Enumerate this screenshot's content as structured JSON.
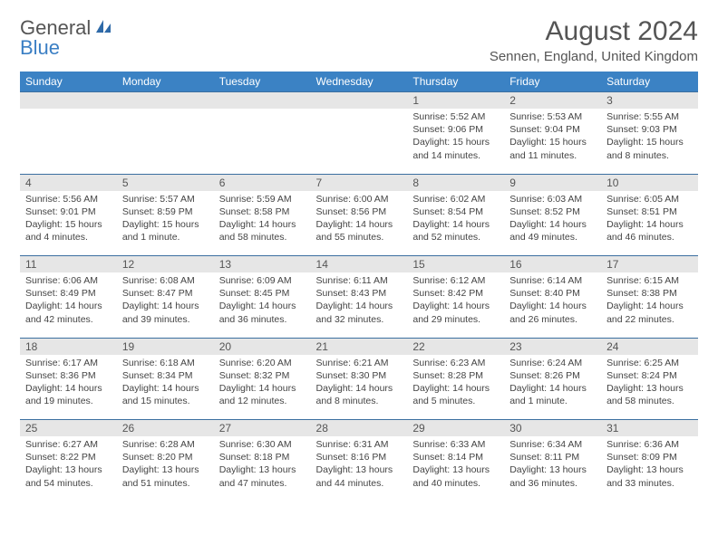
{
  "logo": {
    "text1": "General",
    "text2": "Blue"
  },
  "title": "August 2024",
  "location": "Sennen, England, United Kingdom",
  "colors": {
    "header_bg": "#3b82c4",
    "header_text": "#ffffff",
    "daynum_bg": "#e6e6e6",
    "border": "#3b6fa0",
    "text": "#444444",
    "title_text": "#555555",
    "logo_blue": "#3b7fc4"
  },
  "weekdays": [
    "Sunday",
    "Monday",
    "Tuesday",
    "Wednesday",
    "Thursday",
    "Friday",
    "Saturday"
  ],
  "weeks": [
    [
      {
        "n": "",
        "sr": "",
        "ss": "",
        "dl": ""
      },
      {
        "n": "",
        "sr": "",
        "ss": "",
        "dl": ""
      },
      {
        "n": "",
        "sr": "",
        "ss": "",
        "dl": ""
      },
      {
        "n": "",
        "sr": "",
        "ss": "",
        "dl": ""
      },
      {
        "n": "1",
        "sr": "Sunrise: 5:52 AM",
        "ss": "Sunset: 9:06 PM",
        "dl": "Daylight: 15 hours and 14 minutes."
      },
      {
        "n": "2",
        "sr": "Sunrise: 5:53 AM",
        "ss": "Sunset: 9:04 PM",
        "dl": "Daylight: 15 hours and 11 minutes."
      },
      {
        "n": "3",
        "sr": "Sunrise: 5:55 AM",
        "ss": "Sunset: 9:03 PM",
        "dl": "Daylight: 15 hours and 8 minutes."
      }
    ],
    [
      {
        "n": "4",
        "sr": "Sunrise: 5:56 AM",
        "ss": "Sunset: 9:01 PM",
        "dl": "Daylight: 15 hours and 4 minutes."
      },
      {
        "n": "5",
        "sr": "Sunrise: 5:57 AM",
        "ss": "Sunset: 8:59 PM",
        "dl": "Daylight: 15 hours and 1 minute."
      },
      {
        "n": "6",
        "sr": "Sunrise: 5:59 AM",
        "ss": "Sunset: 8:58 PM",
        "dl": "Daylight: 14 hours and 58 minutes."
      },
      {
        "n": "7",
        "sr": "Sunrise: 6:00 AM",
        "ss": "Sunset: 8:56 PM",
        "dl": "Daylight: 14 hours and 55 minutes."
      },
      {
        "n": "8",
        "sr": "Sunrise: 6:02 AM",
        "ss": "Sunset: 8:54 PM",
        "dl": "Daylight: 14 hours and 52 minutes."
      },
      {
        "n": "9",
        "sr": "Sunrise: 6:03 AM",
        "ss": "Sunset: 8:52 PM",
        "dl": "Daylight: 14 hours and 49 minutes."
      },
      {
        "n": "10",
        "sr": "Sunrise: 6:05 AM",
        "ss": "Sunset: 8:51 PM",
        "dl": "Daylight: 14 hours and 46 minutes."
      }
    ],
    [
      {
        "n": "11",
        "sr": "Sunrise: 6:06 AM",
        "ss": "Sunset: 8:49 PM",
        "dl": "Daylight: 14 hours and 42 minutes."
      },
      {
        "n": "12",
        "sr": "Sunrise: 6:08 AM",
        "ss": "Sunset: 8:47 PM",
        "dl": "Daylight: 14 hours and 39 minutes."
      },
      {
        "n": "13",
        "sr": "Sunrise: 6:09 AM",
        "ss": "Sunset: 8:45 PM",
        "dl": "Daylight: 14 hours and 36 minutes."
      },
      {
        "n": "14",
        "sr": "Sunrise: 6:11 AM",
        "ss": "Sunset: 8:43 PM",
        "dl": "Daylight: 14 hours and 32 minutes."
      },
      {
        "n": "15",
        "sr": "Sunrise: 6:12 AM",
        "ss": "Sunset: 8:42 PM",
        "dl": "Daylight: 14 hours and 29 minutes."
      },
      {
        "n": "16",
        "sr": "Sunrise: 6:14 AM",
        "ss": "Sunset: 8:40 PM",
        "dl": "Daylight: 14 hours and 26 minutes."
      },
      {
        "n": "17",
        "sr": "Sunrise: 6:15 AM",
        "ss": "Sunset: 8:38 PM",
        "dl": "Daylight: 14 hours and 22 minutes."
      }
    ],
    [
      {
        "n": "18",
        "sr": "Sunrise: 6:17 AM",
        "ss": "Sunset: 8:36 PM",
        "dl": "Daylight: 14 hours and 19 minutes."
      },
      {
        "n": "19",
        "sr": "Sunrise: 6:18 AM",
        "ss": "Sunset: 8:34 PM",
        "dl": "Daylight: 14 hours and 15 minutes."
      },
      {
        "n": "20",
        "sr": "Sunrise: 6:20 AM",
        "ss": "Sunset: 8:32 PM",
        "dl": "Daylight: 14 hours and 12 minutes."
      },
      {
        "n": "21",
        "sr": "Sunrise: 6:21 AM",
        "ss": "Sunset: 8:30 PM",
        "dl": "Daylight: 14 hours and 8 minutes."
      },
      {
        "n": "22",
        "sr": "Sunrise: 6:23 AM",
        "ss": "Sunset: 8:28 PM",
        "dl": "Daylight: 14 hours and 5 minutes."
      },
      {
        "n": "23",
        "sr": "Sunrise: 6:24 AM",
        "ss": "Sunset: 8:26 PM",
        "dl": "Daylight: 14 hours and 1 minute."
      },
      {
        "n": "24",
        "sr": "Sunrise: 6:25 AM",
        "ss": "Sunset: 8:24 PM",
        "dl": "Daylight: 13 hours and 58 minutes."
      }
    ],
    [
      {
        "n": "25",
        "sr": "Sunrise: 6:27 AM",
        "ss": "Sunset: 8:22 PM",
        "dl": "Daylight: 13 hours and 54 minutes."
      },
      {
        "n": "26",
        "sr": "Sunrise: 6:28 AM",
        "ss": "Sunset: 8:20 PM",
        "dl": "Daylight: 13 hours and 51 minutes."
      },
      {
        "n": "27",
        "sr": "Sunrise: 6:30 AM",
        "ss": "Sunset: 8:18 PM",
        "dl": "Daylight: 13 hours and 47 minutes."
      },
      {
        "n": "28",
        "sr": "Sunrise: 6:31 AM",
        "ss": "Sunset: 8:16 PM",
        "dl": "Daylight: 13 hours and 44 minutes."
      },
      {
        "n": "29",
        "sr": "Sunrise: 6:33 AM",
        "ss": "Sunset: 8:14 PM",
        "dl": "Daylight: 13 hours and 40 minutes."
      },
      {
        "n": "30",
        "sr": "Sunrise: 6:34 AM",
        "ss": "Sunset: 8:11 PM",
        "dl": "Daylight: 13 hours and 36 minutes."
      },
      {
        "n": "31",
        "sr": "Sunrise: 6:36 AM",
        "ss": "Sunset: 8:09 PM",
        "dl": "Daylight: 13 hours and 33 minutes."
      }
    ]
  ]
}
